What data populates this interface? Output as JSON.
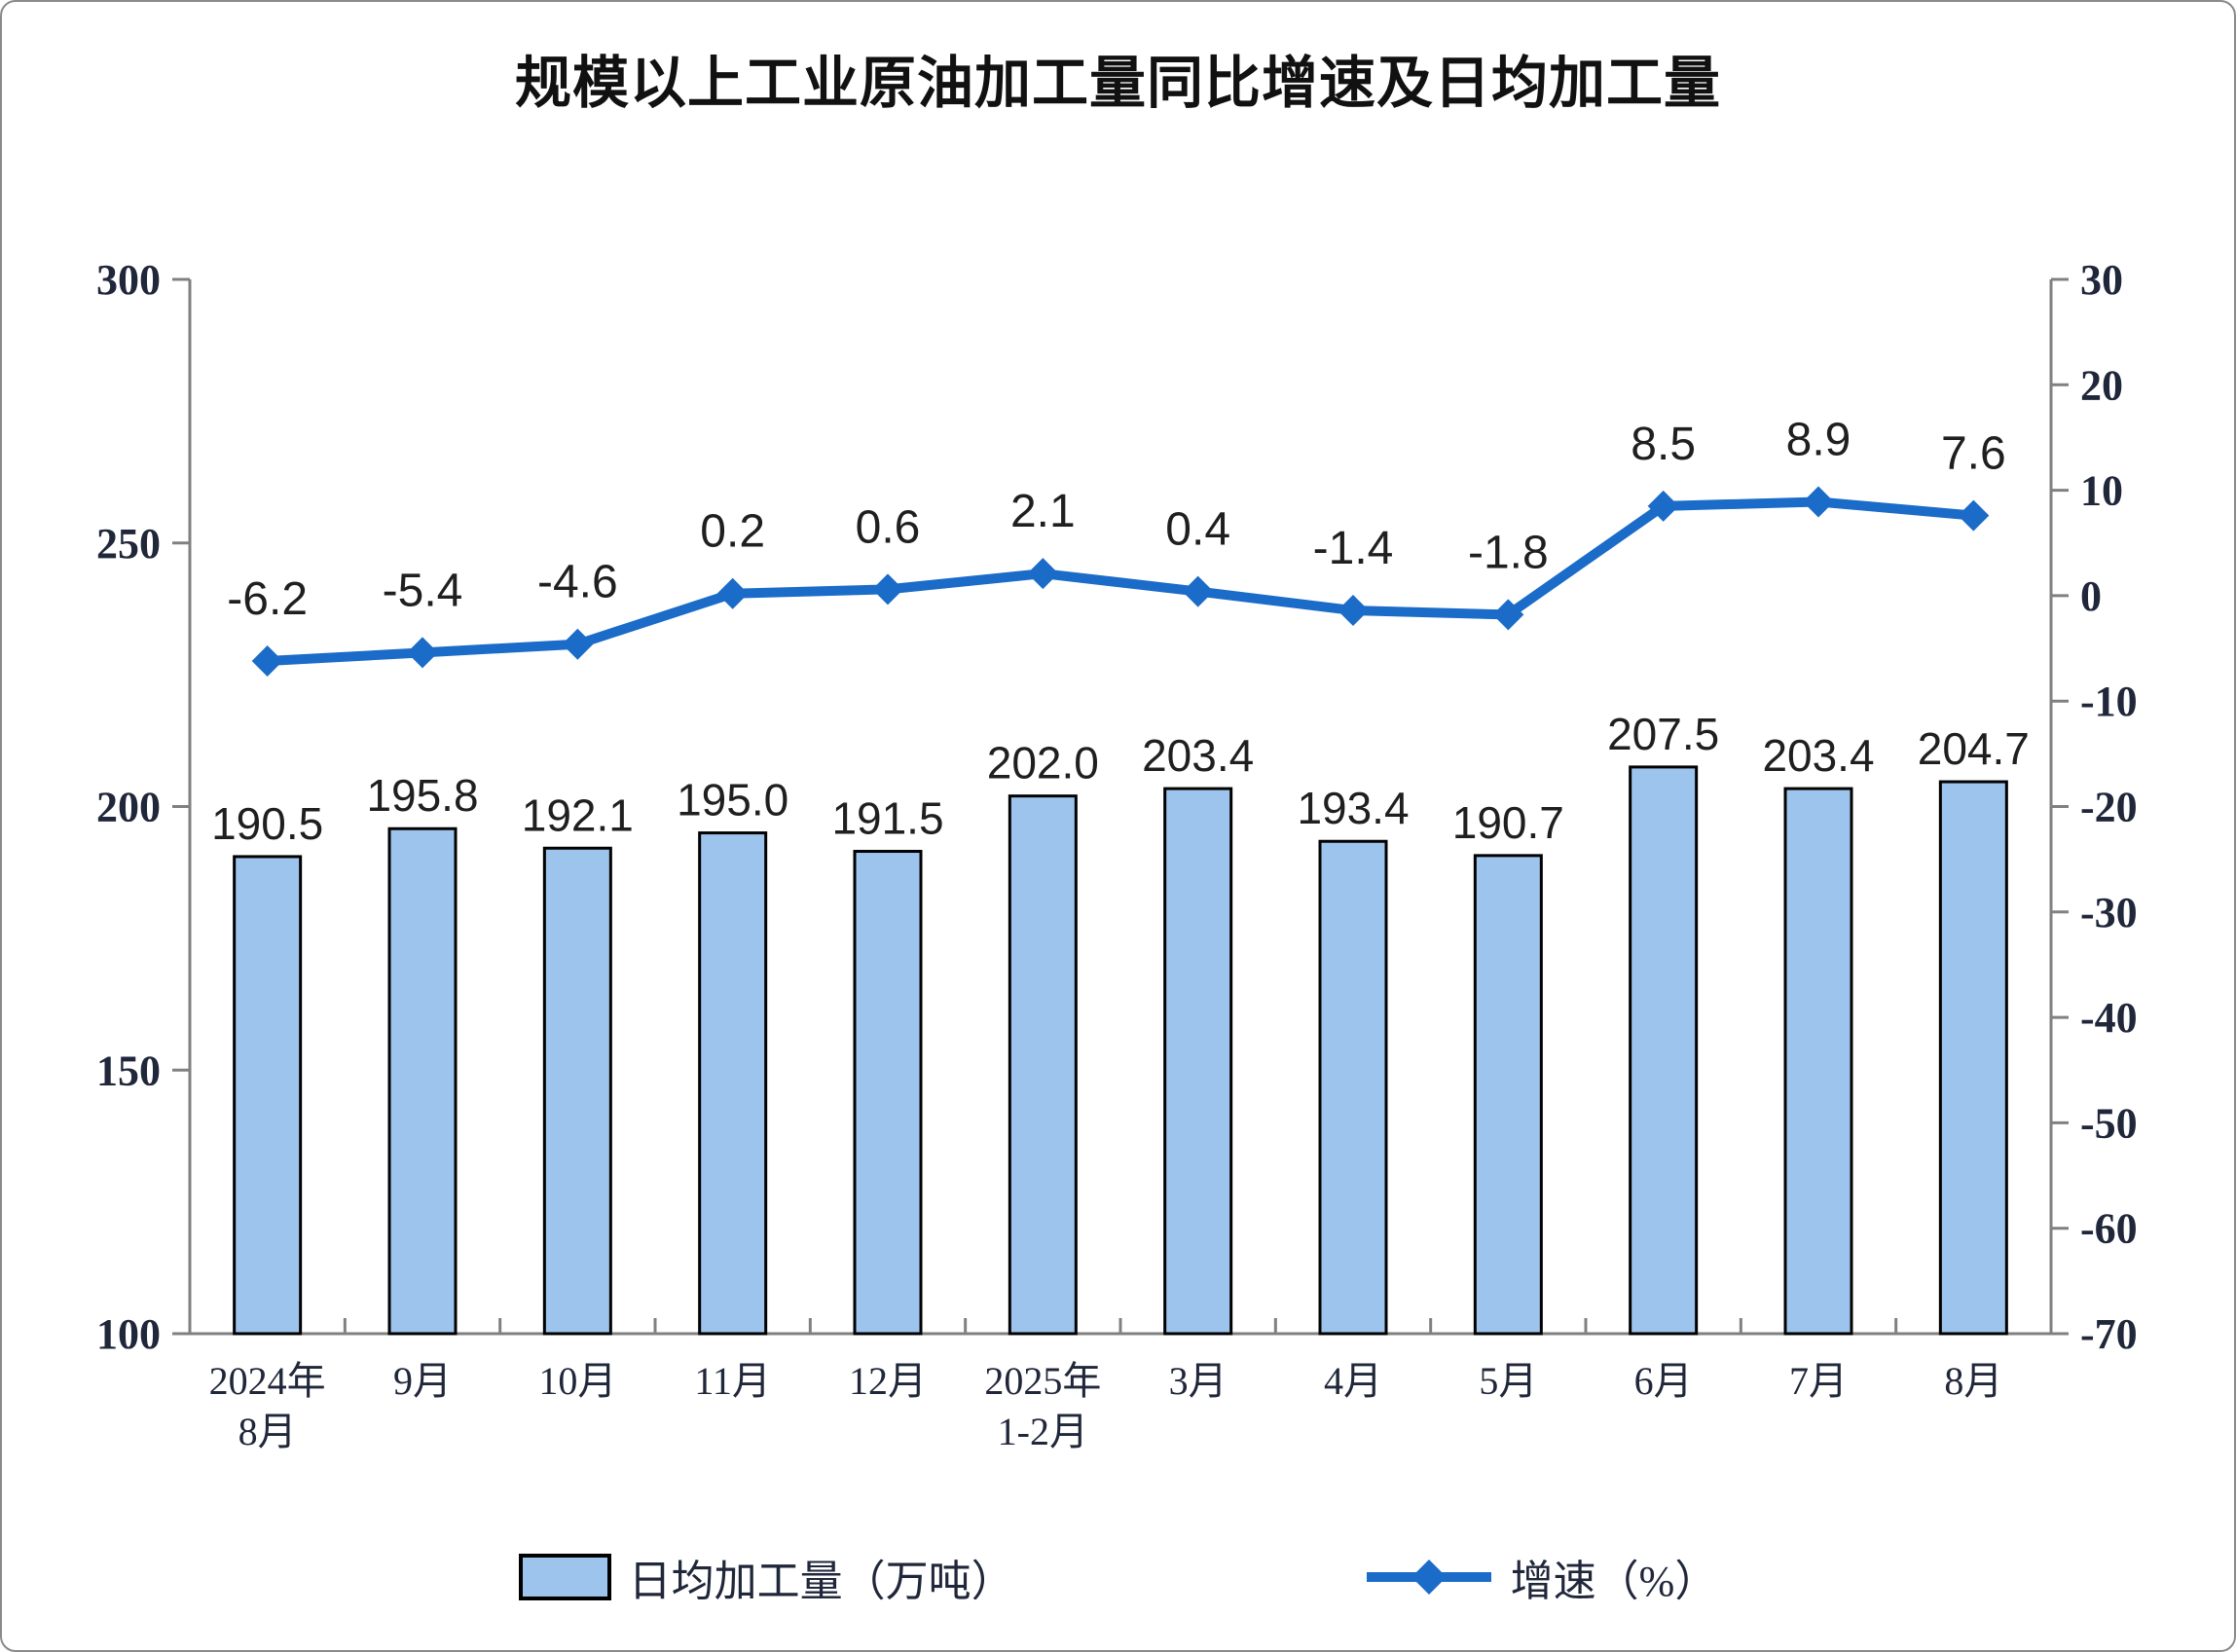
{
  "title": "规模以上工业原油加工量同比增速及日均加工量",
  "chart_data": {
    "type": "bar+line combo",
    "categories": [
      "2024年8月",
      "9月",
      "10月",
      "11月",
      "12月",
      "2025年1-2月",
      "3月",
      "4月",
      "5月",
      "6月",
      "7月",
      "8月"
    ],
    "category_label_lines": [
      [
        "2024年",
        "8月"
      ],
      [
        "9月"
      ],
      [
        "10月"
      ],
      [
        "11月"
      ],
      [
        "12月"
      ],
      [
        "2025年",
        "1-2月"
      ],
      [
        "3月"
      ],
      [
        "4月"
      ],
      [
        "5月"
      ],
      [
        "6月"
      ],
      [
        "7月"
      ],
      [
        "8月"
      ]
    ],
    "series": [
      {
        "name": "日均加工量（万吨）",
        "type": "bar",
        "axis": "left",
        "values": [
          190.5,
          195.8,
          192.1,
          195.0,
          191.5,
          202.0,
          203.4,
          193.4,
          190.7,
          207.5,
          203.4,
          204.7
        ]
      },
      {
        "name": "增速（%）",
        "type": "line",
        "axis": "right",
        "values": [
          -6.2,
          -5.4,
          -4.6,
          0.2,
          0.6,
          2.1,
          0.4,
          -1.4,
          -1.8,
          8.5,
          8.9,
          7.6
        ]
      }
    ],
    "title": "规模以上工业原油加工量同比增速及日均加工量",
    "left_axis": {
      "min": 100,
      "max": 300,
      "ticks": [
        300,
        250,
        200,
        150,
        100
      ]
    },
    "right_axis": {
      "min": -70,
      "max": 30,
      "ticks": [
        30,
        20,
        10,
        0,
        -10,
        -20,
        -30,
        -40,
        -50,
        -60,
        -70
      ]
    },
    "grid": false,
    "legend_position": "bottom"
  },
  "legend": {
    "bar_label": "日均加工量（万吨）",
    "line_label": "增速（%）"
  },
  "colors": {
    "bar_fill": "#9DC4EC",
    "bar_stroke": "#000000",
    "line": "#1B6BC8",
    "axis": "#808080",
    "data_label": "#1F1F1F",
    "axis_label": "#20273A"
  }
}
